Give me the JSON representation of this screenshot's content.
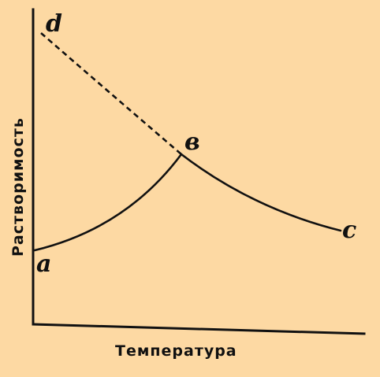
{
  "diagram": {
    "x_axis_label": "Температура",
    "y_axis_label": "Растворимость",
    "points": {
      "a": "a",
      "b": "в",
      "c": "c",
      "d": "d"
    },
    "colors": {
      "background": "#FDD9A3",
      "ink": "#111111"
    }
  }
}
